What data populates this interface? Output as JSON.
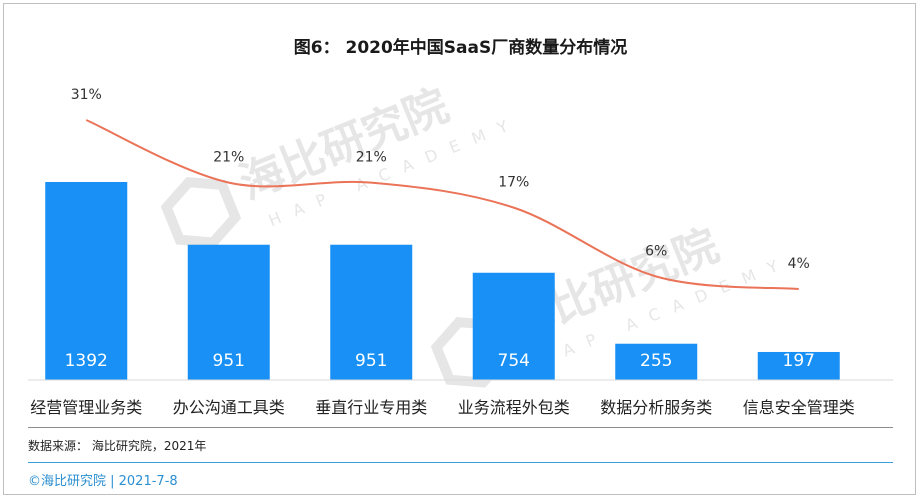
{
  "title": "图6： 2020年中国SaaS厂商数量分布情况",
  "watermark": {
    "brand": "海比研究院",
    "sub": "HAP ACADEMY"
  },
  "source_label": "数据来源： 海比研究院，2021年",
  "footer_label": "©海比研究院 | 2021-7-8",
  "colors": {
    "bar": "#1890f5",
    "line": "#ea7358",
    "accent": "#3aa0d8"
  },
  "chart_data": {
    "type": "bar",
    "categories": [
      "经营管理业务类",
      "办公沟通工具类",
      "垂直行业专用类",
      "业务流程外包类",
      "数据分析服务类",
      "信息安全管理类"
    ],
    "series": [
      {
        "values": [
          1392,
          951,
          951,
          754,
          255,
          197
        ]
      },
      {
        "values": [
          31,
          21,
          21,
          17,
          6,
          4
        ],
        "labels": [
          "31%",
          "21%",
          "21%",
          "17%",
          "6%",
          "4%"
        ],
        "type": "line"
      }
    ],
    "title": "图6： 2020年中国SaaS厂商数量分布情况",
    "xlabel": "",
    "ylabel": "",
    "ylim": [
      0,
      1392
    ]
  }
}
